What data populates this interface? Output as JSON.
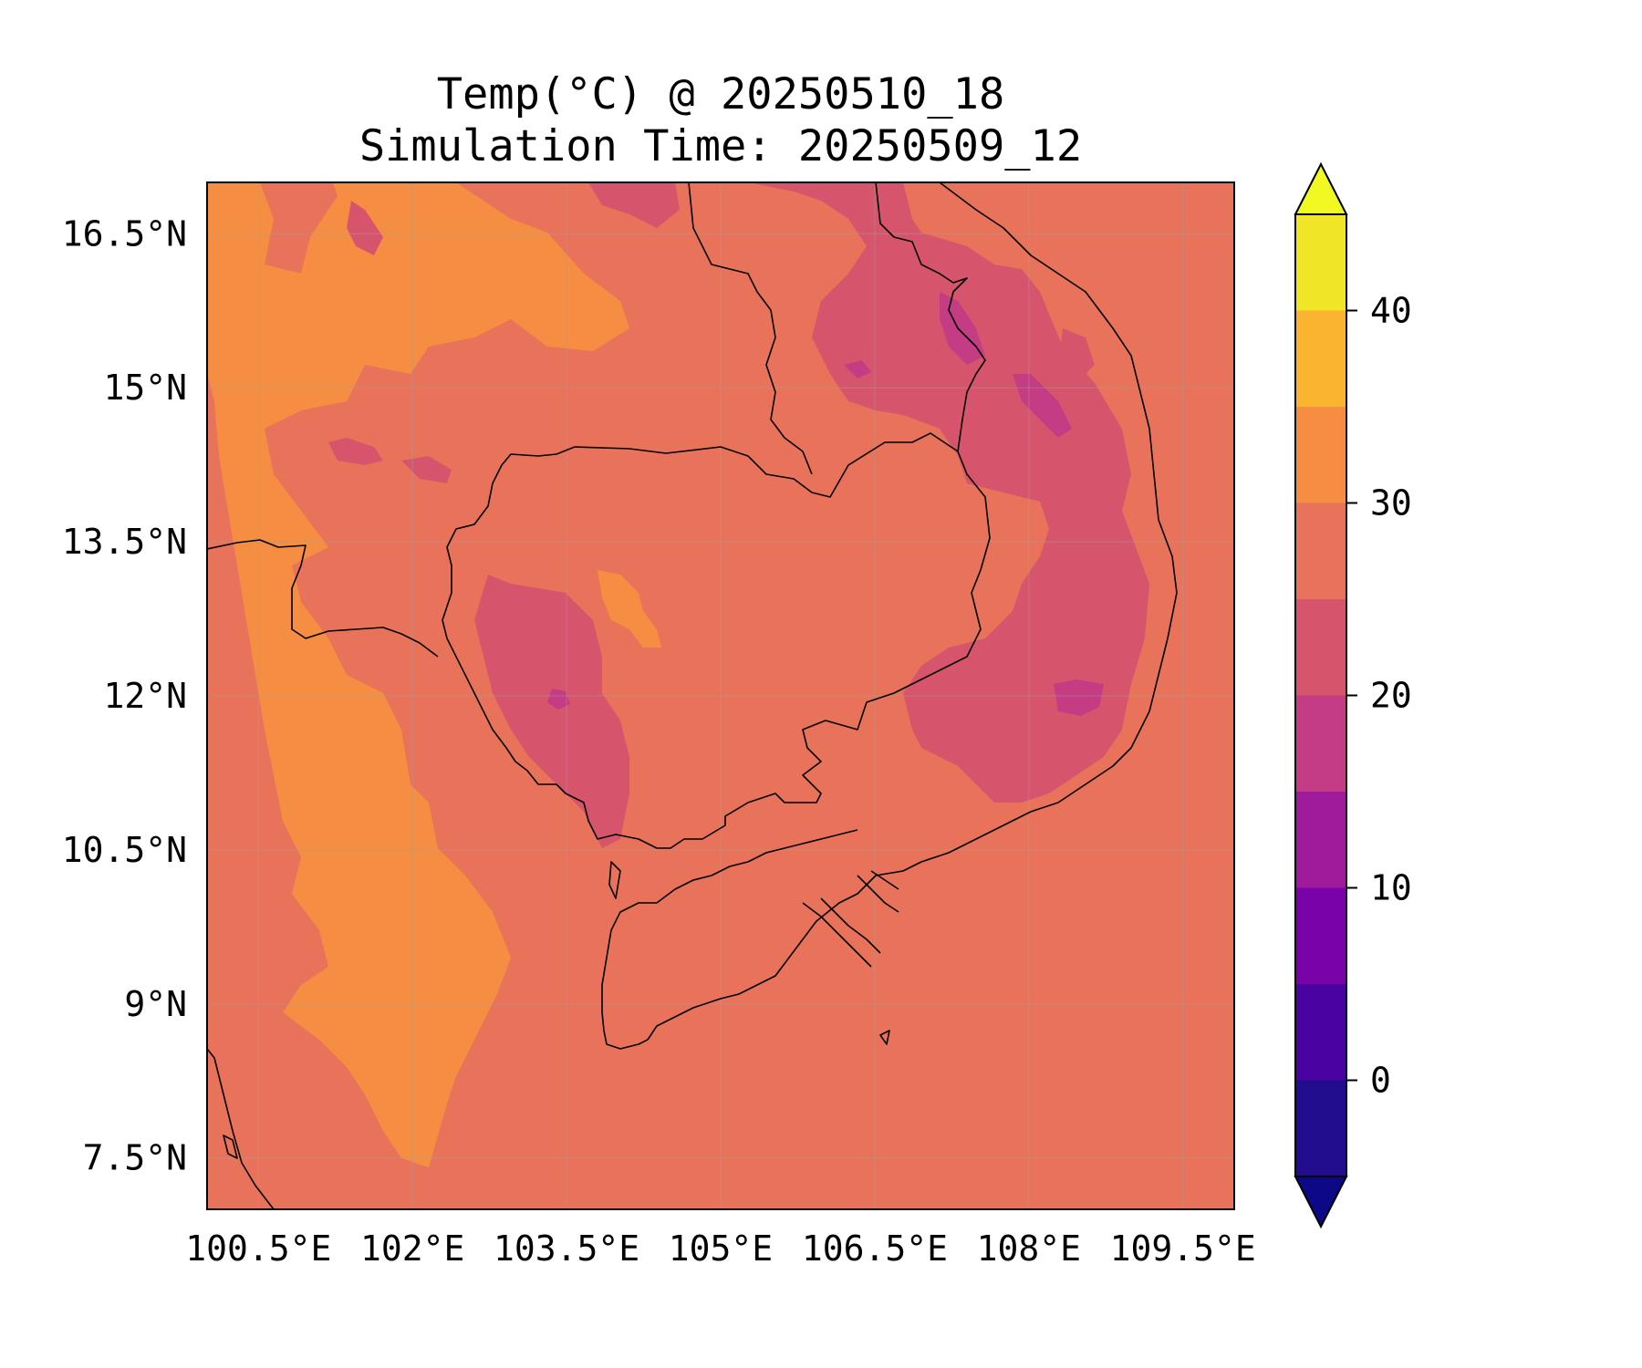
{
  "title": {
    "line1": "Temp(°C) @ 20250510_18",
    "line2": "Simulation Time: 20250509_12"
  },
  "map": {
    "variable": "Temperature",
    "units": "°C",
    "lon_range": [
      100.0,
      110.0
    ],
    "lat_range": [
      7.0,
      17.0
    ],
    "lon_ticks": [
      100.5,
      102,
      103.5,
      105,
      106.5,
      108,
      109.5
    ],
    "lon_tick_labels": [
      "100.5°E",
      "102°E",
      "103.5°E",
      "105°E",
      "106.5°E",
      "108°E",
      "109.5°E"
    ],
    "lat_ticks": [
      7.5,
      9,
      10.5,
      12,
      13.5,
      15,
      16.5
    ],
    "lat_tick_labels": [
      "7.5°N",
      "9°N",
      "10.5°N",
      "12°N",
      "13.5°N",
      "15°N",
      "16.5°N"
    ],
    "gridlines": true,
    "background_level_color": "#e8735a"
  },
  "colorbar": {
    "colormap": "plasma",
    "range": [
      -5,
      45
    ],
    "levels": [
      -5,
      0,
      5,
      10,
      15,
      20,
      25,
      30,
      35,
      40,
      45
    ],
    "colors": [
      "#230d8f",
      "#4a02a0",
      "#7902a8",
      "#a01a9c",
      "#c43c84",
      "#d6556d",
      "#e8735a",
      "#f58e42",
      "#fbb42f",
      "#f0e627"
    ],
    "under_color": "#0d0887",
    "over_color": "#f0f921",
    "extend": "both",
    "ticks": [
      0,
      10,
      20,
      30,
      40
    ],
    "tick_labels": [
      "0",
      "10",
      "20",
      "30",
      "40"
    ]
  }
}
